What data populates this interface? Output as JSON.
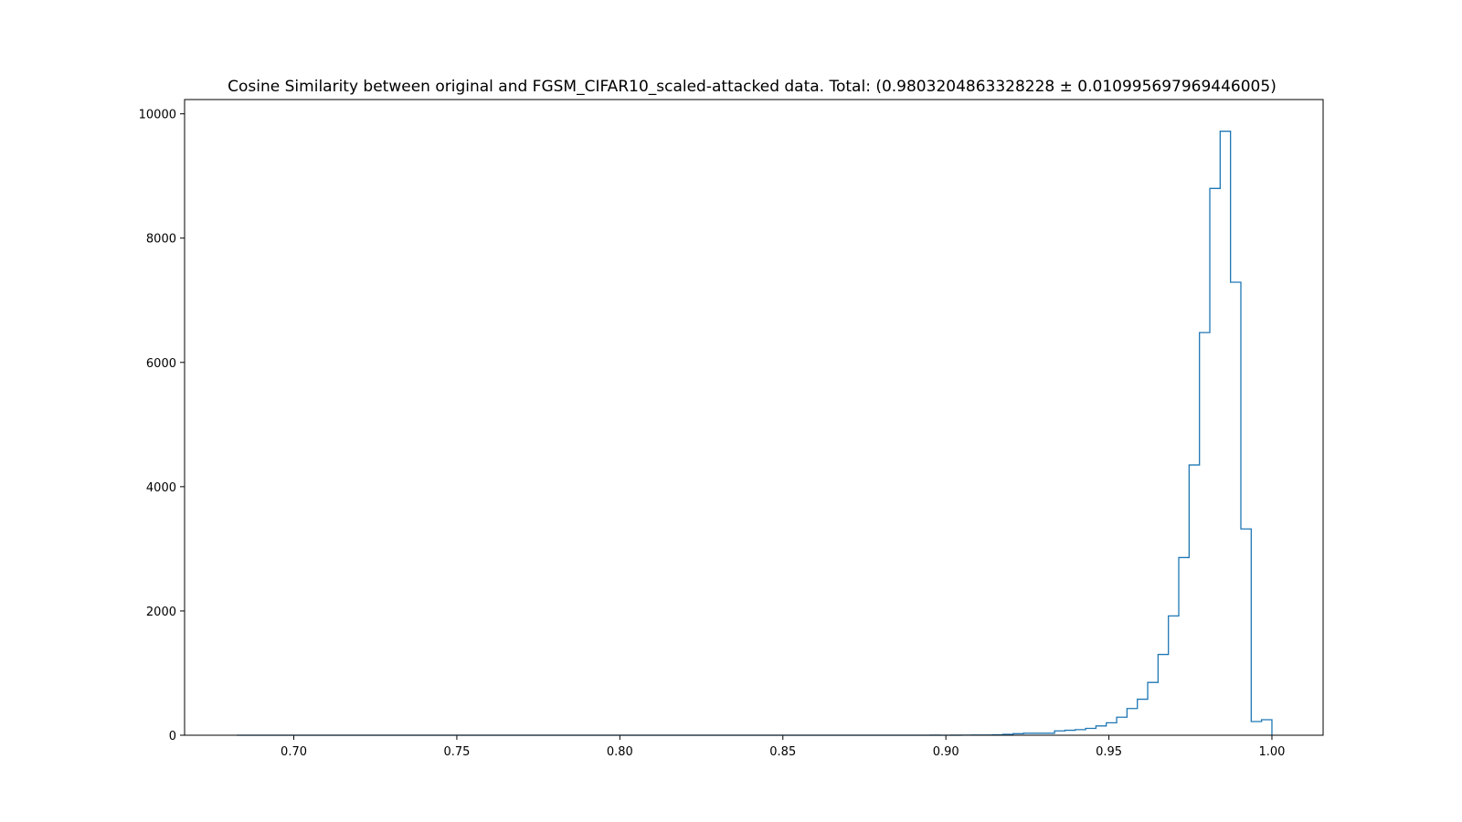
{
  "chart_data": {
    "type": "histogram",
    "title": "Cosine Similarity between original and FGSM_CIFAR10_scaled-attacked data. Total: (0.9803204863328228 ± 0.010995697969446005)",
    "xlabel": "",
    "ylabel": "",
    "xlim": [
      0.6665,
      1.0157
    ],
    "ylim": [
      0,
      10230
    ],
    "xticks": [
      {
        "value": 0.7,
        "label": "0.70"
      },
      {
        "value": 0.75,
        "label": "0.75"
      },
      {
        "value": 0.8,
        "label": "0.80"
      },
      {
        "value": 0.85,
        "label": "0.85"
      },
      {
        "value": 0.9,
        "label": "0.90"
      },
      {
        "value": 0.95,
        "label": "0.95"
      },
      {
        "value": 1.0,
        "label": "1.00"
      }
    ],
    "yticks": [
      {
        "value": 0,
        "label": "0"
      },
      {
        "value": 2000,
        "label": "2000"
      },
      {
        "value": 4000,
        "label": "4000"
      },
      {
        "value": 6000,
        "label": "6000"
      },
      {
        "value": 8000,
        "label": "8000"
      },
      {
        "value": 10000,
        "label": "10000"
      }
    ],
    "grid": false,
    "line_color": "#1f77b4",
    "histtype": "step",
    "bin_start": 0.6825,
    "bin_width": 0.003175,
    "counts": [
      0,
      0,
      0,
      0,
      0,
      0,
      0,
      0,
      0,
      0,
      0,
      0,
      0,
      0,
      0,
      0,
      0,
      0,
      0,
      0,
      0,
      0,
      0,
      0,
      0,
      0,
      0,
      0,
      0,
      0,
      0,
      0,
      0,
      0,
      0,
      0,
      0,
      0,
      0,
      0,
      0,
      0,
      0,
      0,
      0,
      0,
      0,
      0,
      0,
      0,
      0,
      0,
      0,
      0,
      0,
      0,
      0,
      0,
      0,
      0,
      0,
      0,
      0,
      0,
      0,
      0,
      0,
      1,
      0,
      1,
      2,
      3,
      4,
      7,
      15,
      25,
      32,
      32,
      32,
      70,
      80,
      90,
      110,
      150,
      200,
      290,
      430,
      580,
      850,
      1300,
      1920,
      2860,
      4350,
      6480,
      8800,
      9720,
      7290,
      3320,
      220,
      250
    ]
  }
}
